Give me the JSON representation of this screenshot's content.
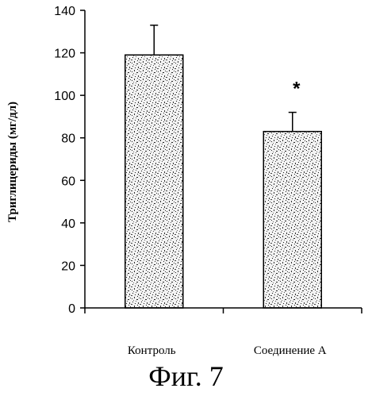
{
  "chart_data": {
    "type": "bar",
    "categories": [
      "Контроль",
      "Соединение А"
    ],
    "values": [
      119,
      83
    ],
    "errors": [
      14,
      9
    ],
    "annotations": [
      "",
      "*"
    ],
    "ylabel": "Триглицериды (мг/дл)",
    "xlabel": "",
    "ylim": [
      0,
      140
    ],
    "yticks": [
      0,
      20,
      40,
      60,
      80,
      100,
      120,
      140
    ],
    "grid": false,
    "bar_fill": "stippled gray"
  },
  "caption": "Фиг. 7",
  "colors": {
    "ink": "#000000",
    "bar_base": "#f2f2f2",
    "background": "#ffffff"
  }
}
